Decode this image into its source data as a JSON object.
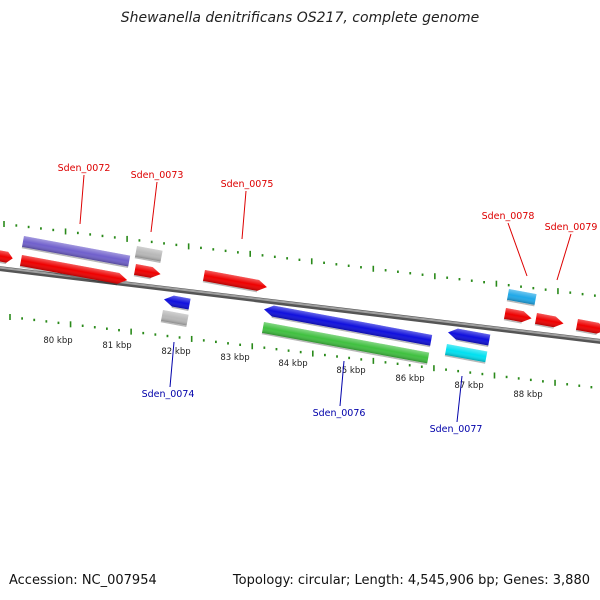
{
  "title": "Shewanella denitrificans OS217, complete genome",
  "footer": {
    "accession": "Accession: NC_007954",
    "genome_stats": "Topology: circular; Length: 4,545,906 bp; Genes: 3,880"
  },
  "colors": {
    "forward_label": "#dd0000",
    "reverse_label": "#0000aa",
    "tick": "#2a8a1a",
    "backbone": "#808080",
    "red": "#ee0000",
    "blue": "#1010dd",
    "purple": "#7060cc",
    "gray": "#b8b8b8",
    "green": "#40c040",
    "cyan": "#00e0f0",
    "sky": "#20a8e8"
  },
  "scale_labels": [
    "80 kbp",
    "81 kbp",
    "82 kbp",
    "83 kbp",
    "84 kbp",
    "85 kbp",
    "86 kbp",
    "87 kbp",
    "88 kbp"
  ],
  "gene_labels_top": [
    "Sden_0072",
    "Sden_0073",
    "Sden_0075",
    "Sden_0078",
    "Sden_0079"
  ],
  "gene_labels_bottom": [
    "Sden_0074",
    "Sden_0076",
    "Sden_0077"
  ]
}
